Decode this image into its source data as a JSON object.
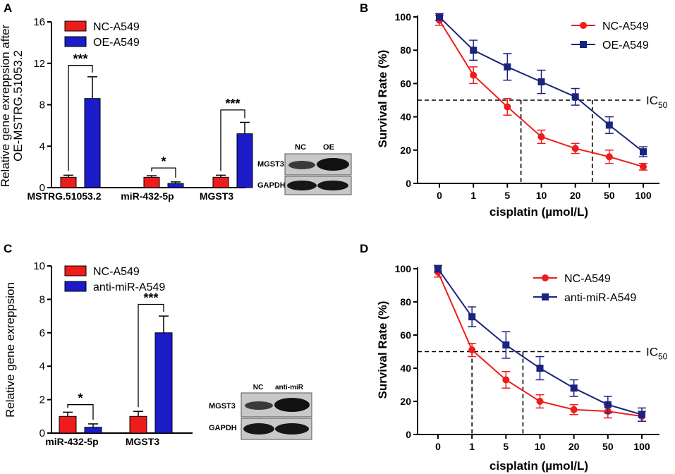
{
  "colors": {
    "red": "#ee1c1c",
    "blue": "#1b1bc8",
    "navy": "#1a237e",
    "black": "#000000"
  },
  "chart_data": [
    {
      "panel": "A",
      "type": "bar",
      "ylabel_lines": [
        "Relative gene exreppsion after",
        "OE-MSTRG.51053.2"
      ],
      "ylim": [
        0,
        16
      ],
      "yticks": [
        0,
        4,
        8,
        12,
        16
      ],
      "categories": [
        "MSTRG.51053.2",
        "miR-432-5p",
        "MGST3"
      ],
      "series": [
        {
          "name": "NC-A549",
          "color": "red",
          "values": [
            1.0,
            1.0,
            1.0
          ],
          "errors": [
            0.2,
            0.15,
            0.2
          ]
        },
        {
          "name": "OE-A549",
          "color": "blue",
          "values": [
            8.6,
            0.4,
            5.2
          ],
          "errors": [
            2.1,
            0.15,
            1.1
          ]
        }
      ],
      "significance": [
        {
          "cat": 0,
          "label": "***",
          "y": 11.8
        },
        {
          "cat": 1,
          "label": "*",
          "y": 1.9
        },
        {
          "cat": 2,
          "label": "***",
          "y": 7.5
        }
      ],
      "blot": {
        "cols": [
          "NC",
          "OE"
        ],
        "rows": [
          "MGST3",
          "GAPDH"
        ]
      }
    },
    {
      "panel": "B",
      "type": "line",
      "ylabel": "Survival Rate (%)",
      "xlabel": "cisplatin (µmol/L)",
      "ylim": [
        0,
        100
      ],
      "yticks": [
        0,
        20,
        40,
        60,
        80,
        100
      ],
      "x": [
        "0",
        "1",
        "5",
        "10",
        "20",
        "50",
        "100"
      ],
      "series": [
        {
          "name": "NC-A549",
          "color": "red",
          "marker": "circle",
          "values": [
            98,
            65,
            46,
            28,
            21,
            16,
            10
          ],
          "errors": [
            3,
            5,
            5,
            4,
            3,
            4,
            2
          ]
        },
        {
          "name": "OE-A549",
          "color": "navy",
          "marker": "square",
          "values": [
            100,
            80,
            70,
            61,
            52,
            35,
            19
          ],
          "errors": [
            2,
            6,
            8,
            7,
            5,
            5,
            3
          ]
        }
      ],
      "ic_line": 50,
      "ic_label": "IC",
      "ic_sub": "50",
      "ic_x_positions": [
        2.4,
        4.5
      ]
    },
    {
      "panel": "C",
      "type": "bar",
      "ylabel": "Relative gene exreppsion",
      "ylim": [
        0,
        10
      ],
      "yticks": [
        0,
        2,
        4,
        6,
        8,
        10
      ],
      "categories": [
        "miR-432-5p",
        "MGST3"
      ],
      "series": [
        {
          "name": "NC-A549",
          "color": "red",
          "values": [
            1.0,
            1.0
          ],
          "errors": [
            0.25,
            0.3
          ]
        },
        {
          "name": "anti-miR-A549",
          "color": "blue",
          "values": [
            0.35,
            6.0
          ],
          "errors": [
            0.2,
            1.0
          ]
        }
      ],
      "significance": [
        {
          "cat": 0,
          "label": "*",
          "y": 1.7
        },
        {
          "cat": 1,
          "label": "***",
          "y": 7.7
        }
      ],
      "blot": {
        "cols": [
          "NC",
          "anti-miR"
        ],
        "rows": [
          "MGST3",
          "GAPDH"
        ]
      }
    },
    {
      "panel": "D",
      "type": "line",
      "ylabel": "Survival Rate (%)",
      "xlabel": "cisplatin (µmol/L)",
      "ylim": [
        0,
        100
      ],
      "yticks": [
        0,
        20,
        40,
        60,
        80,
        100
      ],
      "x": [
        "0",
        "1",
        "5",
        "10",
        "20",
        "50",
        "100"
      ],
      "series": [
        {
          "name": "NC-A549",
          "color": "red",
          "marker": "circle",
          "values": [
            98,
            51,
            33,
            20,
            15,
            14,
            11
          ],
          "errors": [
            3,
            4,
            5,
            4,
            3,
            4,
            3
          ]
        },
        {
          "name": "anti-miR-A549",
          "color": "navy",
          "marker": "square",
          "values": [
            100,
            71,
            54,
            40,
            28,
            18,
            12
          ],
          "errors": [
            2,
            6,
            8,
            7,
            5,
            5,
            4
          ]
        }
      ],
      "ic_line": 50,
      "ic_label": "IC",
      "ic_sub": "50",
      "ic_x_positions": [
        1.0,
        2.5
      ]
    }
  ]
}
